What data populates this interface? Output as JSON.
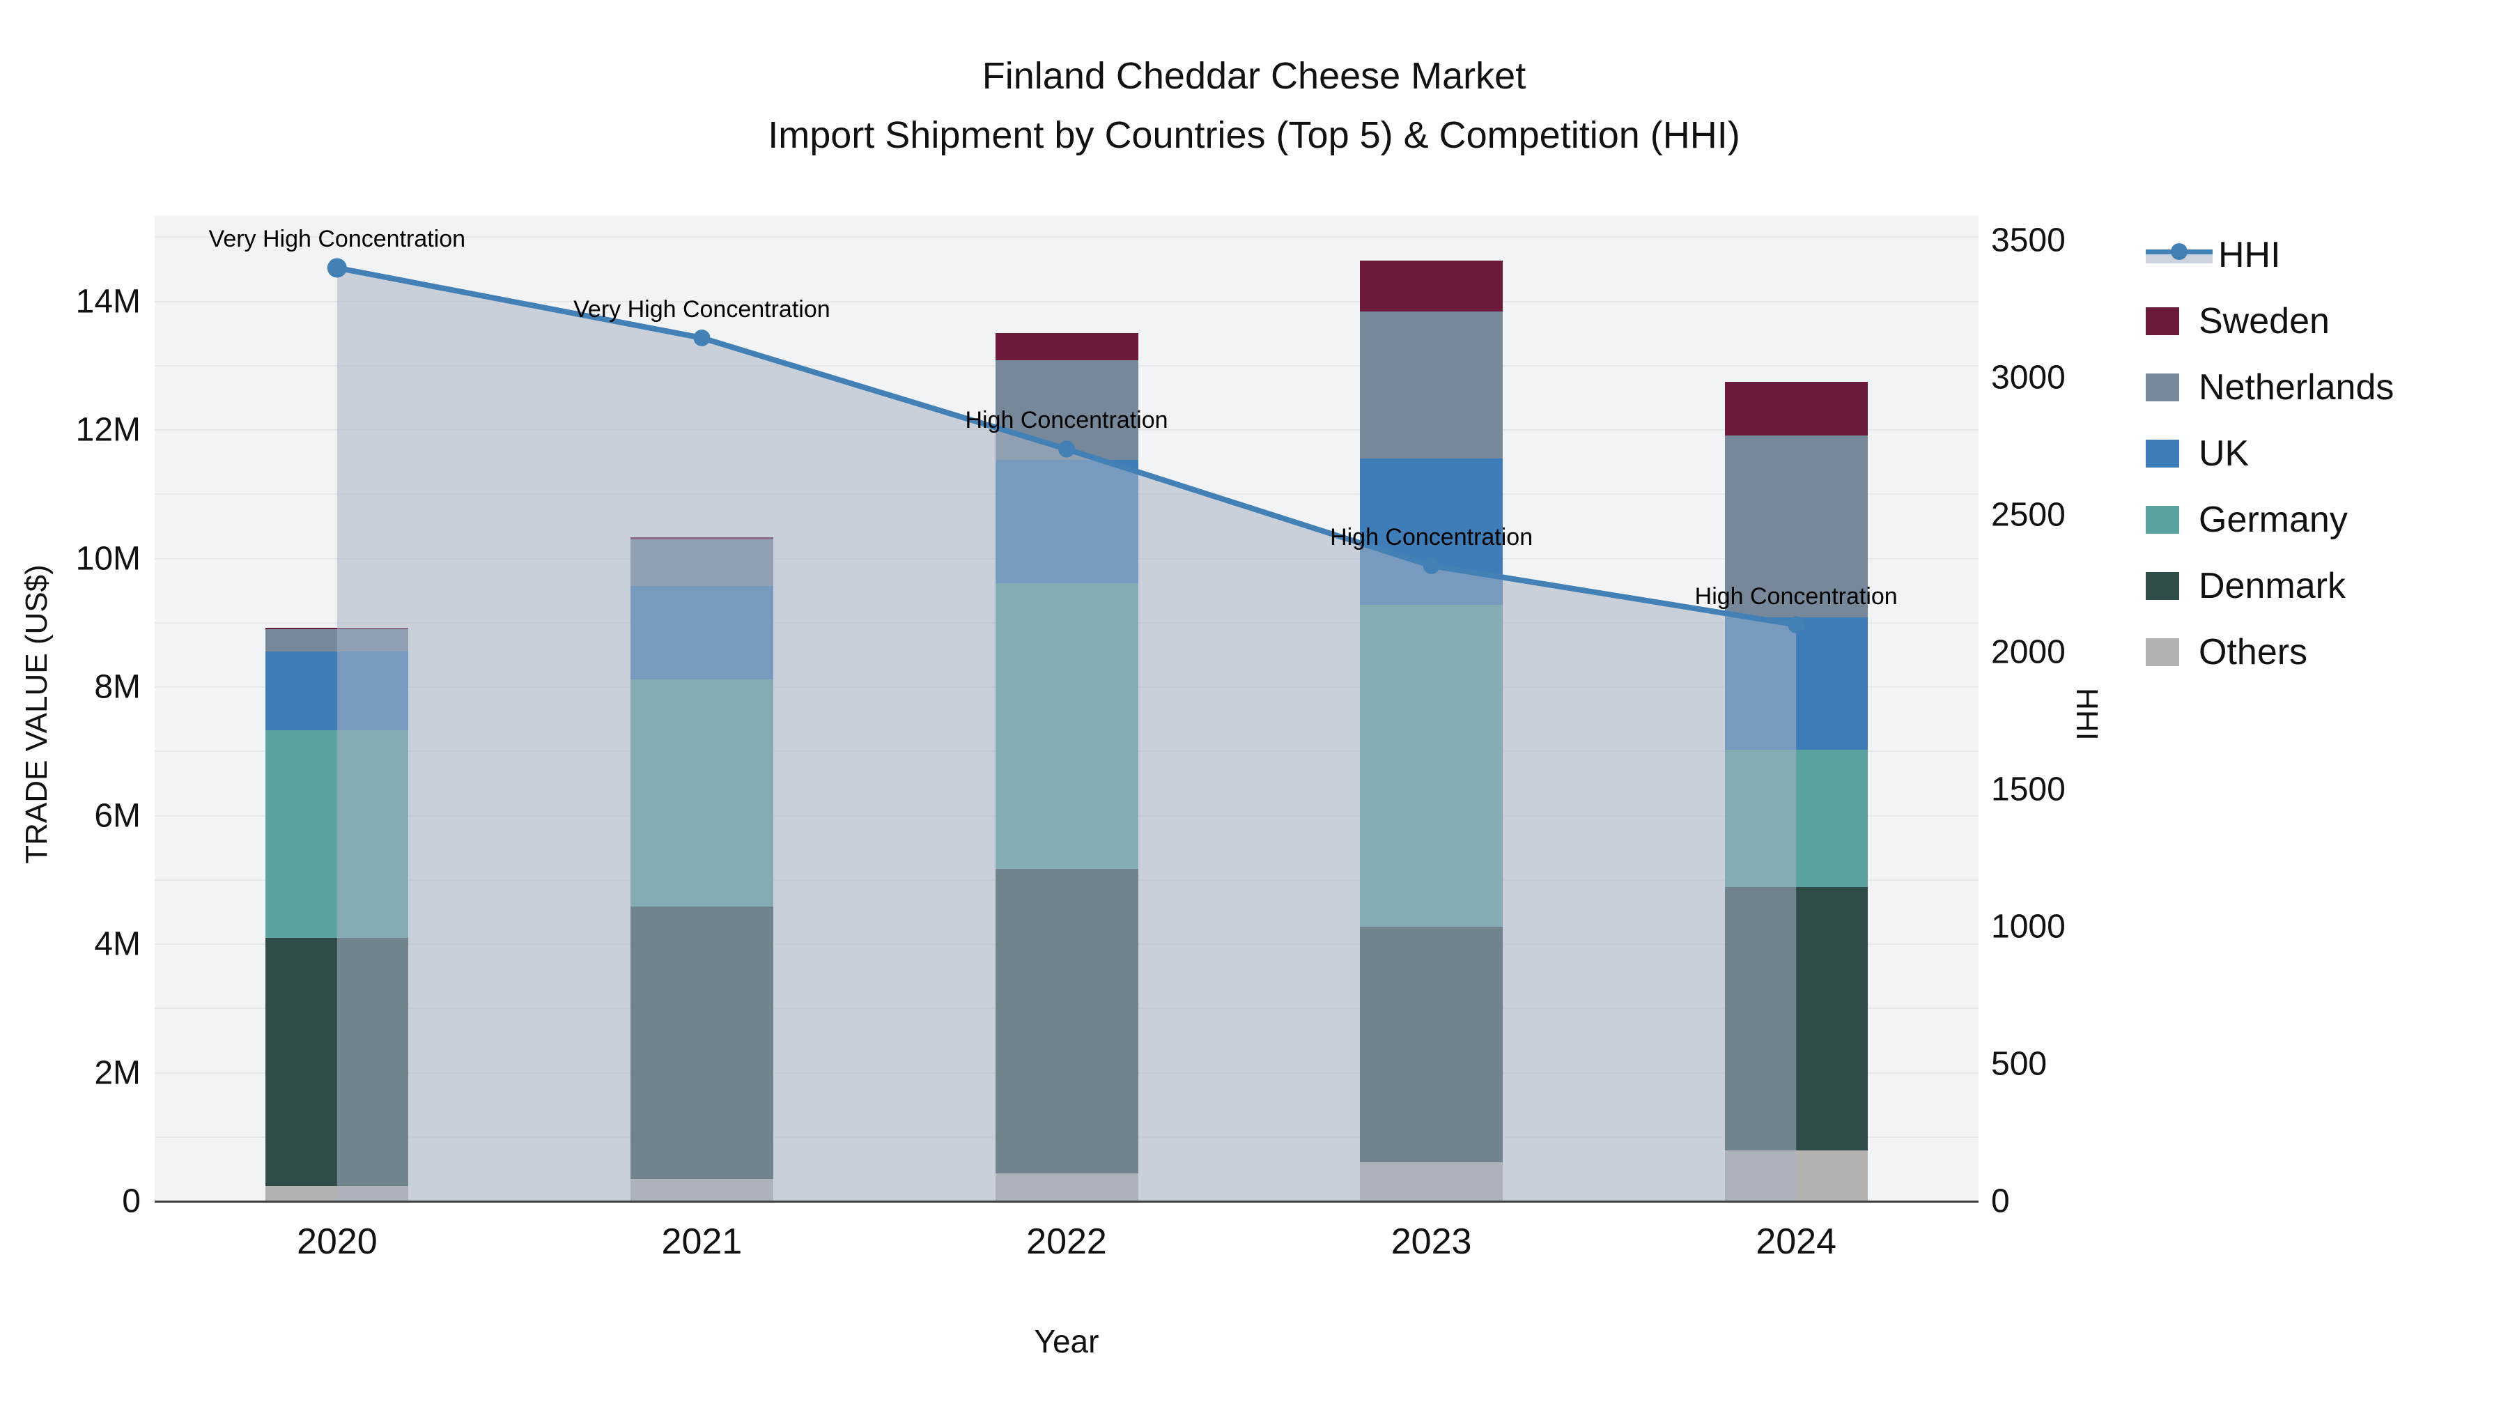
{
  "title": {
    "line1": "Finland Cheddar Cheese Market",
    "line2": "Import Shipment by Countries (Top 5) & Competition (HHI)"
  },
  "axes": {
    "y_left_title": "TRADE VALUE (US$)",
    "y_right_title": "HHI",
    "x_title": "Year"
  },
  "legend": [
    {
      "label": "HHI",
      "type": "line",
      "color": "#4380b5"
    },
    {
      "label": "Sweden",
      "type": "box",
      "color": "#6b1a3c"
    },
    {
      "label": "Netherlands",
      "type": "box",
      "color": "#77889b"
    },
    {
      "label": "UK",
      "type": "box",
      "color": "#3f7db8"
    },
    {
      "label": "Germany",
      "type": "box",
      "color": "#5ba3a0"
    },
    {
      "label": "Denmark",
      "type": "box",
      "color": "#2f4c49"
    },
    {
      "label": "Others",
      "type": "box",
      "color": "#b4b2b0"
    }
  ],
  "chart_data": {
    "type": "bar+line combo (stacked bars, secondary axis line with area fill)",
    "x_categories": [
      "2020",
      "2021",
      "2022",
      "2023",
      "2024"
    ],
    "bar_unit": "USD millions (trade value)",
    "bar_series_bottom_to_top": [
      {
        "name": "Others",
        "color": "#b4b2b0",
        "values": [
          0.24,
          0.35,
          0.43,
          0.61,
          0.79
        ]
      },
      {
        "name": "Denmark",
        "color": "#2f4c49",
        "values": [
          3.86,
          4.24,
          4.74,
          3.66,
          4.1
        ]
      },
      {
        "name": "Germany",
        "color": "#5ba3a0",
        "values": [
          3.23,
          3.53,
          4.45,
          5.01,
          2.13
        ]
      },
      {
        "name": "UK",
        "color": "#3f7db8",
        "values": [
          1.22,
          1.45,
          1.92,
          2.28,
          2.06
        ]
      },
      {
        "name": "Netherlands",
        "color": "#77889b",
        "values": [
          0.35,
          0.73,
          1.55,
          2.29,
          2.83
        ]
      },
      {
        "name": "Sweden",
        "color": "#6b1a3c",
        "values": [
          0.02,
          0.03,
          0.42,
          0.79,
          0.84
        ]
      }
    ],
    "bar_totals": [
      8.92,
      10.33,
      13.51,
      14.64,
      12.75
    ],
    "line_series": {
      "name": "HHI",
      "color": "#4380b5",
      "area_fill": "rgba(167,178,197,0.55)",
      "values": [
        3400,
        3145,
        2740,
        2315,
        2100
      ]
    },
    "annotations": [
      {
        "x": "2020",
        "text": "Very High Concentration"
      },
      {
        "x": "2021",
        "text": "Very High Concentration"
      },
      {
        "x": "2022",
        "text": "High Concentration"
      },
      {
        "x": "2023",
        "text": "High Concentration"
      },
      {
        "x": "2024",
        "text": "High Concentration"
      }
    ],
    "y_left": {
      "tick_labels": [
        "0",
        "2M",
        "4M",
        "6M",
        "8M",
        "10M",
        "12M",
        "14M"
      ],
      "tick_values": [
        0,
        2,
        4,
        6,
        8,
        10,
        12,
        14
      ],
      "grid_every": 1,
      "max_shown": 15.33
    },
    "y_right": {
      "tick_labels": [
        "0",
        "500",
        "1000",
        "1500",
        "2000",
        "2500",
        "3000",
        "3500"
      ],
      "tick_values": [
        0,
        500,
        1000,
        1500,
        2000,
        2500,
        3000,
        3500
      ],
      "max_shown": 3589
    },
    "legend_position": "right",
    "grid": true
  }
}
